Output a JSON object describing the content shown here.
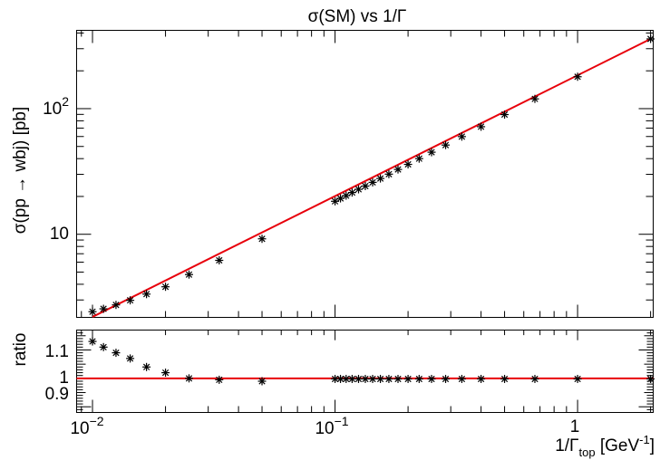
{
  "title": "σ(SM) vs 1/Γ",
  "chart_data": [
    {
      "type": "scatter",
      "name": "main",
      "title": "σ(SM) vs 1/Γ",
      "ylabel": "σ(pp → wbj) [pb]",
      "xscale": "log",
      "yscale": "log",
      "xlim": [
        0.0086,
        2.05
      ],
      "ylim": [
        2.18,
        420
      ],
      "grid": false,
      "legend": "none",
      "x_tick_labels": [
        "",
        "",
        ""
      ],
      "y_tick_labels": [
        "10",
        "10^2"
      ],
      "points": [
        [
          0.01,
          2.42
        ],
        [
          0.0111,
          2.55
        ],
        [
          0.0125,
          2.74
        ],
        [
          0.0143,
          2.98
        ],
        [
          0.0167,
          3.34
        ],
        [
          0.02,
          3.82
        ],
        [
          0.025,
          4.78
        ],
        [
          0.0333,
          6.2
        ],
        [
          0.05,
          9.2
        ],
        [
          0.1,
          18.3
        ],
        [
          0.1053,
          19.3
        ],
        [
          0.1111,
          20.3
        ],
        [
          0.1176,
          21.5
        ],
        [
          0.125,
          22.8
        ],
        [
          0.1333,
          24.2
        ],
        [
          0.1429,
          25.9
        ],
        [
          0.1538,
          27.8
        ],
        [
          0.1667,
          30.1
        ],
        [
          0.1818,
          32.8
        ],
        [
          0.2,
          36.0
        ],
        [
          0.2222,
          40.0
        ],
        [
          0.25,
          45.0
        ],
        [
          0.2857,
          51.3
        ],
        [
          0.3333,
          59.9
        ],
        [
          0.4,
          71.8
        ],
        [
          0.5,
          89.7
        ],
        [
          0.6667,
          119.6
        ],
        [
          1.0,
          179.4
        ],
        [
          2.0,
          358.8
        ]
      ],
      "fit": {
        "color": "#e8000b",
        "x_range": [
          0.01,
          2.0
        ],
        "y_at_x_min": 2.2,
        "y_at_x_max": 358.8
      }
    },
    {
      "type": "scatter",
      "name": "ratio",
      "ylabel": "ratio",
      "xlabel": "1/Γ_top [GeV^-1]",
      "xscale": "log",
      "xlim": [
        0.0086,
        2.05
      ],
      "ylim": [
        0.88,
        1.17
      ],
      "grid": false,
      "legend": "none",
      "x_tick_labels": [
        "10^-2",
        "10^-1",
        "1"
      ],
      "y_tick_labels": [
        "0.9",
        "1",
        "1.1"
      ],
      "reference_line": {
        "y": 1.0,
        "color": "#e8000b"
      },
      "points": [
        [
          0.01,
          1.13
        ],
        [
          0.0111,
          1.11
        ],
        [
          0.0125,
          1.09
        ],
        [
          0.0143,
          1.07
        ],
        [
          0.0167,
          1.04
        ],
        [
          0.02,
          1.02
        ],
        [
          0.025,
          1.0
        ],
        [
          0.0333,
          0.995
        ],
        [
          0.05,
          0.99
        ],
        [
          0.1,
          0.998
        ],
        [
          0.1053,
          0.998
        ],
        [
          0.1111,
          0.998
        ],
        [
          0.1176,
          0.998
        ],
        [
          0.125,
          0.998
        ],
        [
          0.1333,
          0.998
        ],
        [
          0.1429,
          0.998
        ],
        [
          0.1538,
          0.998
        ],
        [
          0.1667,
          0.998
        ],
        [
          0.1818,
          0.998
        ],
        [
          0.2,
          0.998
        ],
        [
          0.2222,
          0.998
        ],
        [
          0.25,
          0.998
        ],
        [
          0.2857,
          0.998
        ],
        [
          0.3333,
          0.998
        ],
        [
          0.4,
          0.998
        ],
        [
          0.5,
          0.998
        ],
        [
          0.6667,
          0.998
        ],
        [
          1.0,
          0.998
        ],
        [
          2.0,
          0.998
        ]
      ]
    }
  ]
}
